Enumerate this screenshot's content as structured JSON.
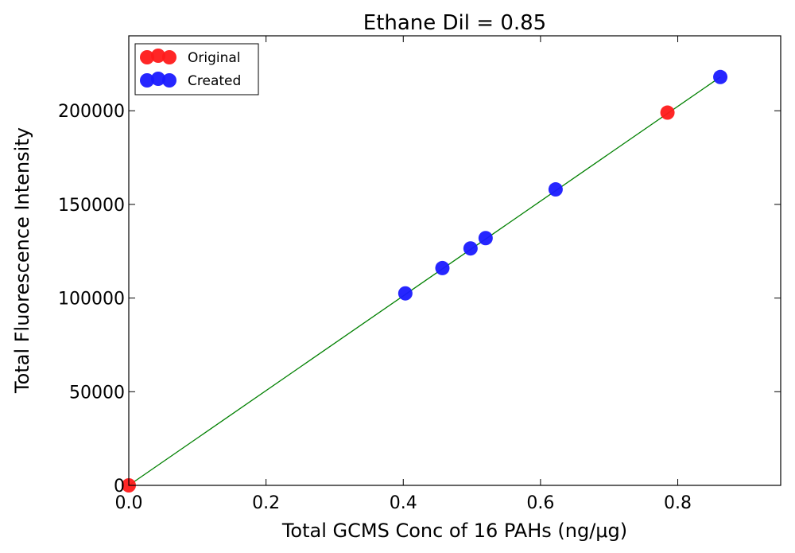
{
  "chart_data": {
    "type": "scatter",
    "title": "Ethane Dil = 0.85",
    "xlabel": "Total GCMS Conc of 16 PAHs (ng/μg)",
    "ylabel": "Total Fluorescence Intensity",
    "xlim": [
      0.0,
      0.95
    ],
    "ylim": [
      0,
      240000
    ],
    "xticks": [
      0.0,
      0.2,
      0.4,
      0.6,
      0.8
    ],
    "xtick_labels": [
      "0.0",
      "0.2",
      "0.4",
      "0.6",
      "0.8"
    ],
    "yticks": [
      0,
      50000,
      100000,
      150000,
      200000
    ],
    "ytick_labels": [
      "0",
      "50000",
      "100000",
      "150000",
      "200000"
    ],
    "grid": false,
    "legend_position": "top-left",
    "series": [
      {
        "name": "Original",
        "color": "#ff1a1a",
        "x": [
          0.0,
          0.785
        ],
        "y": [
          0,
          199000
        ]
      },
      {
        "name": "Created",
        "color": "#1a1aff",
        "x": [
          0.403,
          0.457,
          0.498,
          0.52,
          0.622,
          0.862
        ],
        "y": [
          102500,
          116000,
          126500,
          132000,
          158000,
          218000
        ]
      }
    ],
    "fit_line": {
      "color": "#008000",
      "x": [
        0.0,
        0.862
      ],
      "y": [
        0,
        218000
      ]
    }
  }
}
